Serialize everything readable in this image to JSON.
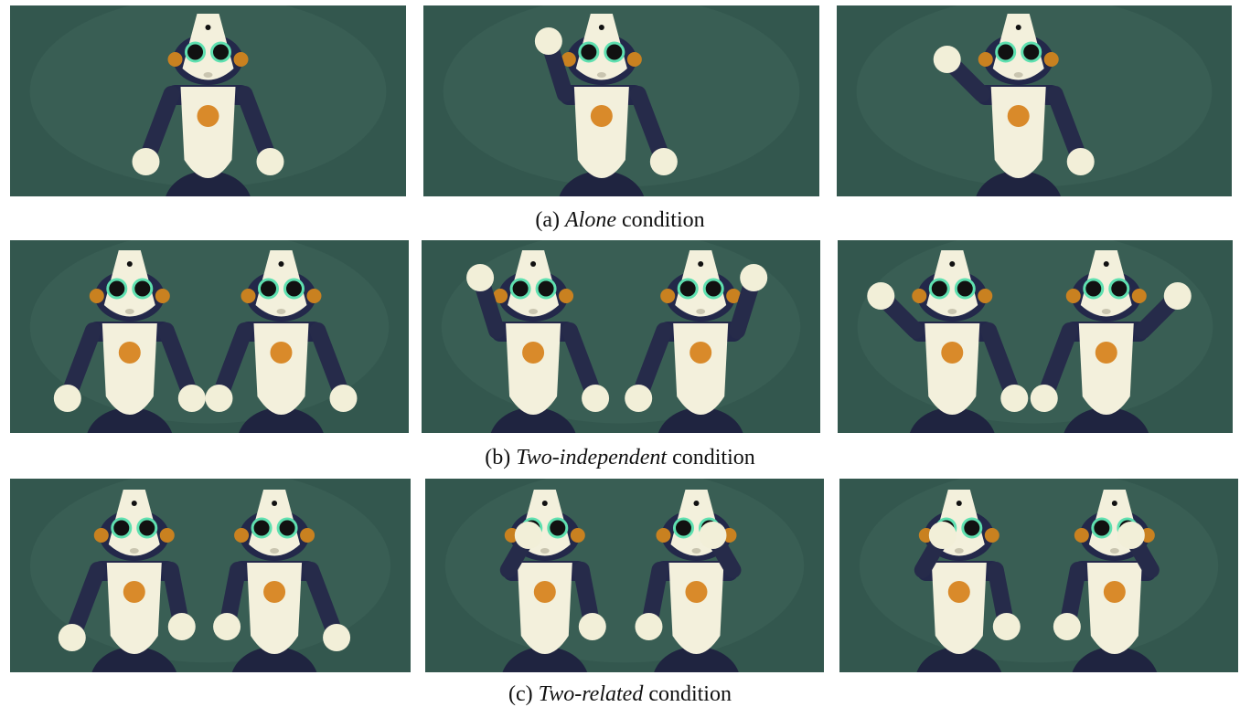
{
  "captions": [
    {
      "label": "(a)",
      "emphasis": "Alone",
      "text": "condition"
    },
    {
      "label": "(b)",
      "emphasis": "Two-independent",
      "text": "condition"
    },
    {
      "label": "(c)",
      "emphasis": "Two-related",
      "text": "condition"
    }
  ]
}
